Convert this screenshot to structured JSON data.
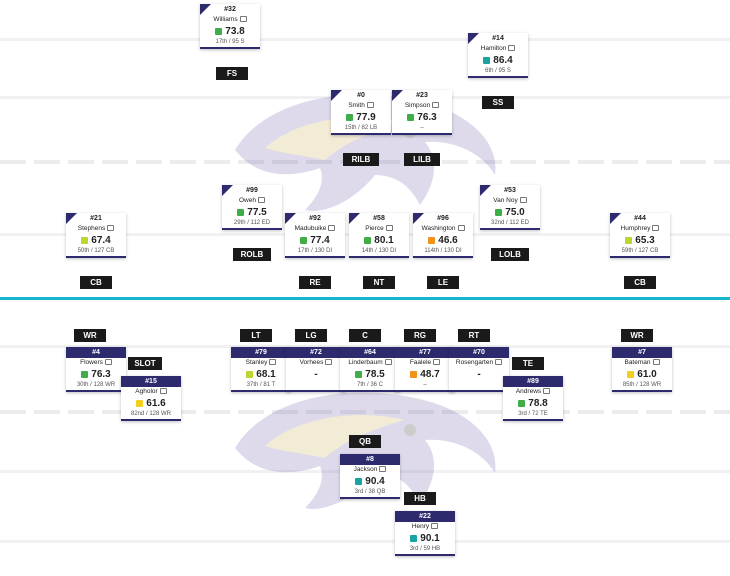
{
  "colors": {
    "navy": "#2d2a6e",
    "line_of_scrimmage": "#16b6cf",
    "grade_green": "#3fae49",
    "grade_lime": "#bfd42e",
    "grade_yellow": "#f2cf1f",
    "grade_orange": "#f0931c",
    "grade_teal": "#1aa3a3"
  },
  "icons": {
    "logo": "ravens-bird-logo",
    "feedback": "feedback-icon"
  },
  "defense": {
    "williams": {
      "number": "#32",
      "name": "Williams",
      "grade": "73.8",
      "grade_color": "green",
      "rank": "17th / 95 S",
      "position": "FS"
    },
    "hamilton": {
      "number": "#14",
      "name": "Hamilton",
      "grade": "86.4",
      "grade_color": "teal",
      "rank": "6th / 95 S",
      "position": "SS"
    },
    "smith": {
      "number": "#0",
      "name": "Smith",
      "grade": "77.9",
      "grade_color": "green",
      "rank": "15th / 82 LB",
      "position": "RILB"
    },
    "simpson": {
      "number": "#23",
      "name": "Simpson",
      "grade": "76.3",
      "grade_color": "green",
      "rank": "–",
      "position": "LILB"
    },
    "oweh": {
      "number": "#99",
      "name": "Oweh",
      "grade": "77.5",
      "grade_color": "green",
      "rank": "29th / 112 ED",
      "position": "ROLB"
    },
    "vannoy": {
      "number": "#53",
      "name": "Van Noy",
      "grade": "75.0",
      "grade_color": "green",
      "rank": "32nd / 112 ED",
      "position": "LOLB"
    },
    "stephens": {
      "number": "#21",
      "name": "Stephens",
      "grade": "67.4",
      "grade_color": "lime",
      "rank": "50th / 127 CB",
      "position": "CB"
    },
    "madubuike": {
      "number": "#92",
      "name": "Madubuike",
      "grade": "77.4",
      "grade_color": "green",
      "rank": "17th / 130 DI",
      "position": "RE"
    },
    "pierce": {
      "number": "#58",
      "name": "Pierce",
      "grade": "80.1",
      "grade_color": "green",
      "rank": "14th / 130 DI",
      "position": "NT"
    },
    "washington": {
      "number": "#96",
      "name": "Washington",
      "grade": "46.6",
      "grade_color": "orange",
      "rank": "114th / 130 DI",
      "position": "LE"
    },
    "humphrey": {
      "number": "#44",
      "name": "Humphrey",
      "grade": "65.3",
      "grade_color": "lime",
      "rank": "59th / 127 CB",
      "position": "CB"
    }
  },
  "offense": {
    "flowers": {
      "number": "#4",
      "name": "Flowers",
      "grade": "76.3",
      "grade_color": "green",
      "rank": "30th / 128 WR",
      "position": "WR"
    },
    "agholor": {
      "number": "#15",
      "name": "Agholor",
      "grade": "61.6",
      "grade_color": "yellow",
      "rank": "82nd / 128 WR",
      "position": "SLOT"
    },
    "stanley": {
      "number": "#79",
      "name": "Stanley",
      "grade": "68.1",
      "grade_color": "lime",
      "rank": "37th / 81 T",
      "position": "LT"
    },
    "vorhees": {
      "number": "#72",
      "name": "Vorhees",
      "grade": "-",
      "grade_color": "none",
      "rank": "",
      "position": "LG"
    },
    "linderbaum": {
      "number": "#64",
      "name": "Linderbaum",
      "grade": "78.5",
      "grade_color": "green",
      "rank": "7th / 36 C",
      "position": "C"
    },
    "faalele": {
      "number": "#77",
      "name": "Faalele",
      "grade": "48.7",
      "grade_color": "orange",
      "rank": "–",
      "position": "RG"
    },
    "rosengarten": {
      "number": "#70",
      "name": "Rosengarten",
      "grade": "-",
      "grade_color": "none",
      "rank": "",
      "position": "RT"
    },
    "andrews": {
      "number": "#89",
      "name": "Andrews",
      "grade": "78.8",
      "grade_color": "green",
      "rank": "3rd / 72 TE",
      "position": "TE"
    },
    "bateman": {
      "number": "#7",
      "name": "Bateman",
      "grade": "61.0",
      "grade_color": "yellow",
      "rank": "85th / 128 WR",
      "position": "WR"
    },
    "jackson": {
      "number": "#8",
      "name": "Jackson",
      "grade": "90.4",
      "grade_color": "teal",
      "rank": "3rd / 38 QB",
      "position": "QB"
    },
    "henry": {
      "number": "#22",
      "name": "Henry",
      "grade": "90.1",
      "grade_color": "teal",
      "rank": "3rd / 59 HB",
      "position": "HB"
    }
  }
}
